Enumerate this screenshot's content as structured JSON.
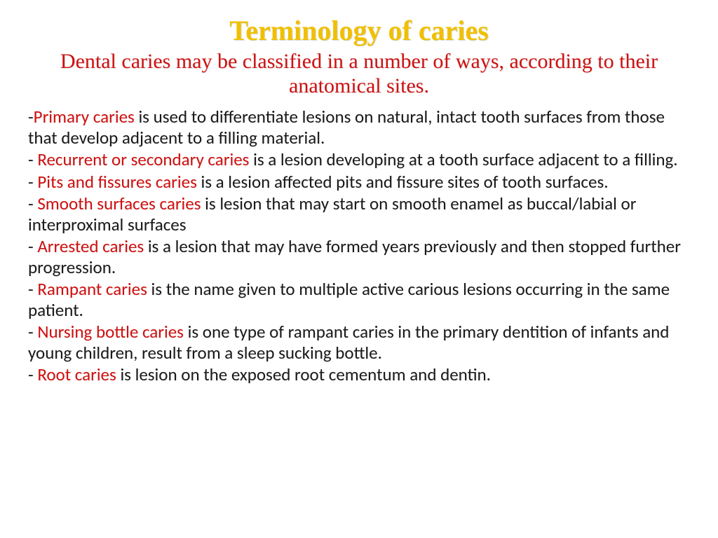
{
  "title": "Terminology of caries",
  "subtitle": "Dental caries may be classified in a number of ways, according to their anatomical sites.",
  "items": [
    {
      "prefix": "-",
      "term": "Primary caries ",
      "rest": "is used to differentiate lesions on natural, intact tooth surfaces from those that develop adjacent to a filling material."
    },
    {
      "prefix": "- ",
      "term": "Recurrent or secondary caries ",
      "rest": "is a lesion developing at a tooth surface adjacent to a filling."
    },
    {
      "prefix": "- ",
      "term": "Pits and fissures caries ",
      "rest": "is a lesion affected pits and fissure sites of tooth surfaces."
    },
    {
      "prefix": "- ",
      "term": "Smooth surfaces caries ",
      "rest": "is lesion that may start on smooth enamel as buccal/labial or interproximal surfaces"
    },
    {
      "prefix": "- ",
      "term": "Arrested caries ",
      "rest": "is a lesion that may have formed years previously and then stopped further progression."
    },
    {
      "prefix": "- ",
      "term": "Rampant caries ",
      "rest": "is the name given to multiple active carious lesions occurring in the same patient."
    },
    {
      "prefix": "- ",
      "term": "Nursing bottle caries ",
      "rest": "is one type of rampant caries in the primary dentition of infants and young children, result from a sleep sucking bottle."
    },
    {
      "prefix": "- ",
      "term": "Root caries ",
      "rest": "is lesion on the exposed root cementum and dentin."
    }
  ],
  "colors": {
    "title_color": "#f0c000",
    "accent_color": "#d01010",
    "text_color": "#1a1a1a",
    "background": "#ffffff"
  }
}
